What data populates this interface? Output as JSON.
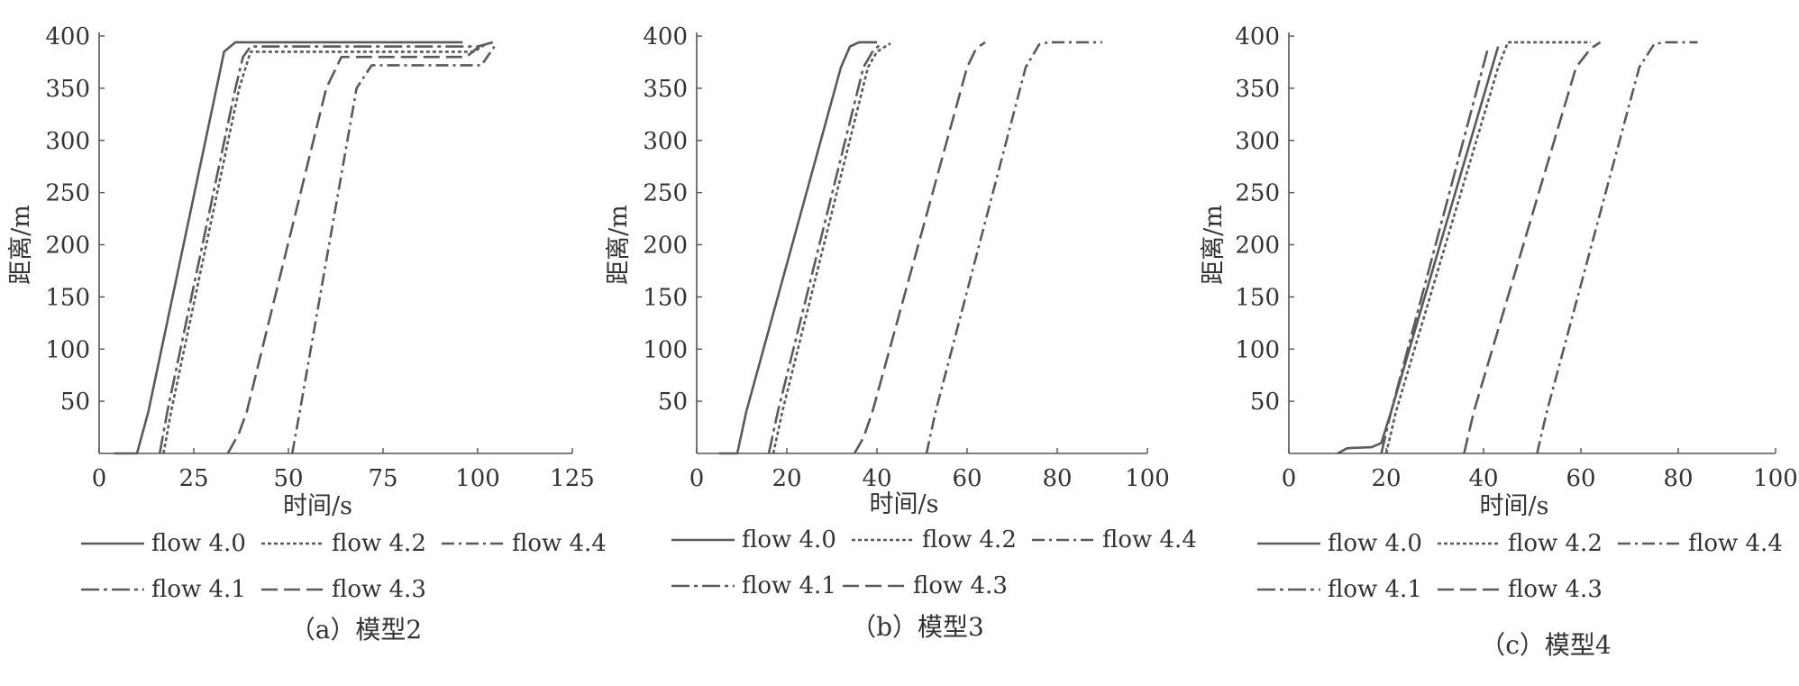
{
  "colors": {
    "line": "#5a5a5a",
    "axis": "#555555",
    "text": "#333333"
  },
  "chart_data": [
    {
      "type": "line",
      "panel_label": "（a）模型2",
      "xlabel": "时间/s",
      "ylabel": "距离/m",
      "xlim": [
        0,
        125
      ],
      "ylim": [
        0,
        400
      ],
      "xticks": [
        0,
        25,
        50,
        75,
        100,
        125
      ],
      "yticks": [
        50,
        100,
        150,
        200,
        250,
        300,
        350,
        400
      ],
      "grid": false,
      "legend_position": "bottom",
      "series": [
        {
          "name": "flow 4.0",
          "style": "solid",
          "points": [
            [
              4,
              0
            ],
            [
              10,
              0
            ],
            [
              13,
              40
            ],
            [
              31,
              350
            ],
            [
              33,
              385
            ],
            [
              36,
              394
            ],
            [
              96,
              394
            ]
          ]
        },
        {
          "name": "flow 4.2",
          "style": "dotted",
          "points": [
            [
              17,
              0
            ],
            [
              19,
              40
            ],
            [
              37,
              350
            ],
            [
              40,
              385
            ],
            [
              99,
              385
            ],
            [
              102,
              392
            ]
          ]
        },
        {
          "name": "flow 4.4",
          "style": "dashdot",
          "points": [
            [
              51,
              0
            ],
            [
              53,
              40
            ],
            [
              68,
              350
            ],
            [
              72,
              372
            ],
            [
              101,
              372
            ],
            [
              105,
              393
            ]
          ]
        },
        {
          "name": "flow 4.1",
          "style": "longdashdot",
          "points": [
            [
              16,
              0
            ],
            [
              18,
              40
            ],
            [
              36,
              350
            ],
            [
              38,
              380
            ],
            [
              40,
              390
            ],
            [
              100,
              390
            ],
            [
              104,
              394
            ]
          ]
        },
        {
          "name": "flow 4.3",
          "style": "longdash",
          "points": [
            [
              34,
              0
            ],
            [
              37,
              20
            ],
            [
              39,
              40
            ],
            [
              60,
              350
            ],
            [
              64,
              380
            ],
            [
              97,
              380
            ],
            [
              101,
              392
            ]
          ]
        }
      ]
    },
    {
      "type": "line",
      "panel_label": "（b）模型3",
      "xlabel": "时间/s",
      "ylabel": "距离/m",
      "xlim": [
        0,
        100
      ],
      "ylim": [
        0,
        400
      ],
      "xticks": [
        0,
        20,
        40,
        60,
        80,
        100
      ],
      "yticks": [
        50,
        100,
        150,
        200,
        250,
        300,
        350,
        400
      ],
      "grid": false,
      "legend_position": "bottom",
      "series": [
        {
          "name": "flow 4.0",
          "style": "solid",
          "points": [
            [
              5,
              0
            ],
            [
              9,
              0
            ],
            [
              11,
              40
            ],
            [
              32,
              370
            ],
            [
              34,
              390
            ],
            [
              36,
              394
            ],
            [
              40,
              394
            ]
          ]
        },
        {
          "name": "flow 4.2",
          "style": "dotted",
          "points": [
            [
              17,
              0
            ],
            [
              19,
              40
            ],
            [
              38,
              370
            ],
            [
              40,
              385
            ],
            [
              43,
              393
            ]
          ]
        },
        {
          "name": "flow 4.4",
          "style": "dashdot",
          "points": [
            [
              51,
              0
            ],
            [
              53,
              40
            ],
            [
              73,
              370
            ],
            [
              76,
              392
            ],
            [
              78,
              394
            ],
            [
              90,
              394
            ]
          ]
        },
        {
          "name": "flow 4.1",
          "style": "longdashdot",
          "points": [
            [
              16,
              0
            ],
            [
              18,
              40
            ],
            [
              37,
              370
            ],
            [
              39,
              385
            ],
            [
              41,
              393
            ]
          ]
        },
        {
          "name": "flow 4.3",
          "style": "longdash",
          "points": [
            [
              35,
              0
            ],
            [
              37,
              15
            ],
            [
              39,
              40
            ],
            [
              60,
              370
            ],
            [
              62,
              388
            ],
            [
              64,
              394
            ]
          ]
        }
      ]
    },
    {
      "type": "line",
      "panel_label": "（c）模型4",
      "xlabel": "时间/s",
      "ylabel": "距离/m",
      "xlim": [
        0,
        100
      ],
      "ylim": [
        0,
        400
      ],
      "xticks": [
        0,
        20,
        40,
        60,
        80,
        100
      ],
      "yticks": [
        50,
        100,
        150,
        200,
        250,
        300,
        350,
        400
      ],
      "grid": false,
      "legend_position": "bottom",
      "series": [
        {
          "name": "flow 4.0",
          "style": "solid",
          "points": [
            [
              10,
              0
            ],
            [
              12,
              5
            ],
            [
              17,
              6
            ],
            [
              19,
              10
            ],
            [
              21,
              40
            ],
            [
              43,
              390
            ]
          ]
        },
        {
          "name": "flow 4.2",
          "style": "dotted",
          "points": [
            [
              20,
              0
            ],
            [
              22,
              40
            ],
            [
              43,
              370
            ],
            [
              45,
              394
            ],
            [
              62,
              394
            ]
          ]
        },
        {
          "name": "flow 4.4",
          "style": "dashdot",
          "points": [
            [
              51,
              0
            ],
            [
              53,
              40
            ],
            [
              72,
              370
            ],
            [
              75,
              392
            ],
            [
              77,
              394
            ],
            [
              84,
              394
            ]
          ]
        },
        {
          "name": "flow 4.1",
          "style": "longdashdot",
          "points": [
            [
              19,
              0
            ],
            [
              21,
              40
            ],
            [
              41,
              390
            ]
          ]
        },
        {
          "name": "flow 4.3",
          "style": "longdash",
          "points": [
            [
              36,
              0
            ],
            [
              38,
              40
            ],
            [
              59,
              370
            ],
            [
              62,
              388
            ],
            [
              64,
              394
            ]
          ]
        }
      ]
    }
  ]
}
